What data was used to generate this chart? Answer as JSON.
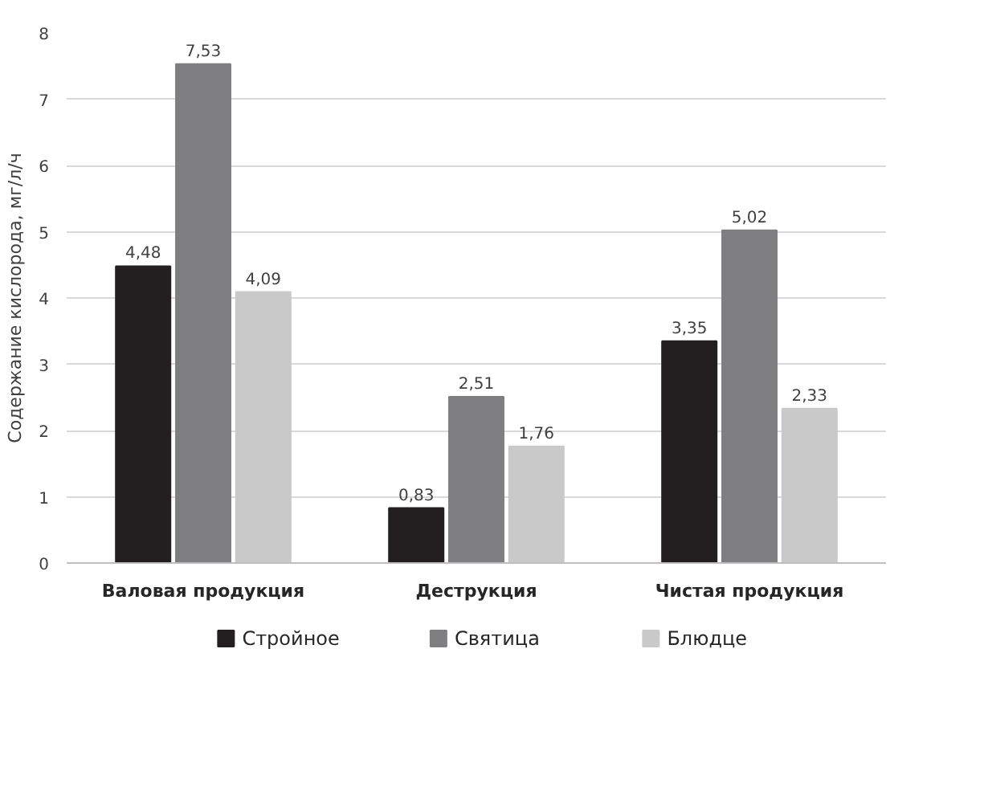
{
  "chart_data": {
    "type": "bar",
    "ylabel": "Содержание кислорода, мг/л/ч",
    "categories": [
      "Валовая продукция",
      "Деструкция",
      "Чистая продукция"
    ],
    "series": [
      {
        "name": "Стройное",
        "color": "#231f20",
        "values": [
          4.48,
          0.83,
          3.35
        ],
        "value_labels": [
          "4,48",
          "0,83",
          "3,35"
        ]
      },
      {
        "name": "Святица",
        "color": "#7f7f81",
        "values": [
          7.53,
          2.51,
          5.02
        ],
        "value_labels": [
          "7,53",
          "2,51",
          "5,02"
        ]
      },
      {
        "name": "Блюдце",
        "color": "#c9c9c9",
        "values": [
          4.09,
          1.76,
          2.33
        ],
        "value_labels": [
          "4,09",
          "1,76",
          "2,33"
        ]
      }
    ],
    "ylim": [
      0,
      8
    ],
    "yticks": [
      0,
      1,
      2,
      3,
      4,
      5,
      6,
      7,
      8
    ],
    "grid": "y",
    "legend": "bottom"
  }
}
